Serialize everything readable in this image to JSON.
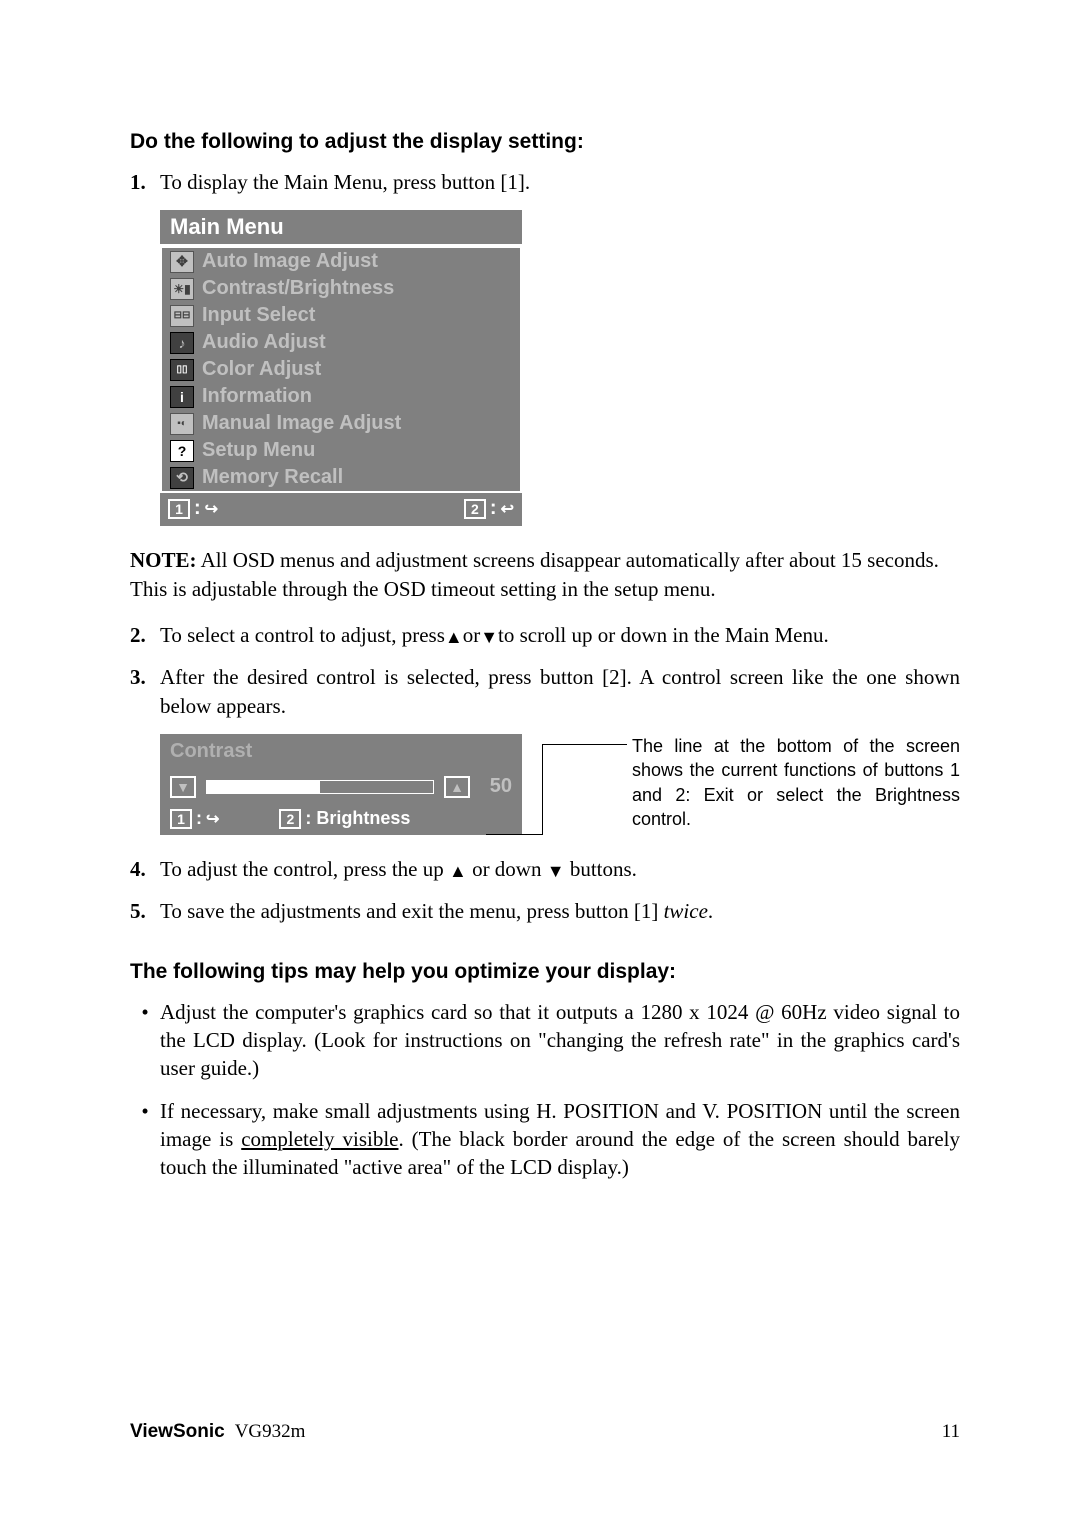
{
  "heading1": "Do the following to adjust the display setting:",
  "step1_num": "1.",
  "step1_text": "To display the Main Menu, press button [1].",
  "osd": {
    "title": "Main Menu",
    "items": [
      "Auto Image Adjust",
      "Contrast/Brightness",
      "Input Select",
      "Audio Adjust",
      "Color Adjust",
      "Information",
      "Manual Image Adjust",
      "Setup Menu",
      "Memory Recall"
    ],
    "foot1": "1",
    "foot2": "2"
  },
  "note_label": "NOTE:",
  "note_text": " All OSD menus and adjustment screens disappear automatically after about 15 seconds. This is adjustable through the OSD timeout setting in the setup menu.",
  "step2_num": "2.",
  "step2_pre": "To select a control to adjust, press",
  "step2_post": "to scroll up or down in the Main Menu.",
  "step2_or": "or",
  "step3_num": "3.",
  "step3_text": "After the desired control is selected, press button [2]. A control screen like the one shown below appears.",
  "contrast": {
    "title": "Contrast",
    "value": "50",
    "foot1_key": "1",
    "foot2_key": "2",
    "foot2_label": ": Brightness"
  },
  "legend_text": "The line at the bottom of the screen shows the current functions of buttons 1 and 2: Exit or select the Brightness control.",
  "step4_num": "4.",
  "step4_pre": "To adjust the control, press the up ",
  "step4_mid": " or down ",
  "step4_post": " buttons.",
  "step5_num": "5.",
  "step5_pre": "To save the adjustments and exit the menu, press button [1] ",
  "step5_twice": "twice",
  "step5_post": ".",
  "heading2": "The following tips may help you optimize your display:",
  "tip1": "Adjust the computer's graphics card so that it outputs a 1280 x 1024 @ 60Hz video signal to the LCD display. (Look for instructions on \"changing the refresh rate\" in the graphics card's user guide.)",
  "tip2_pre": "If necessary, make small adjustments using H. POSITION and V. POSITION until the screen image is ",
  "tip2_underline": "completely visible",
  "tip2_post": ". (The black border around the edge of the screen should barely touch the illuminated \"active area\" of the LCD display.)",
  "footer_brand": "ViewSonic",
  "footer_model": "VG932m",
  "footer_page": "11"
}
